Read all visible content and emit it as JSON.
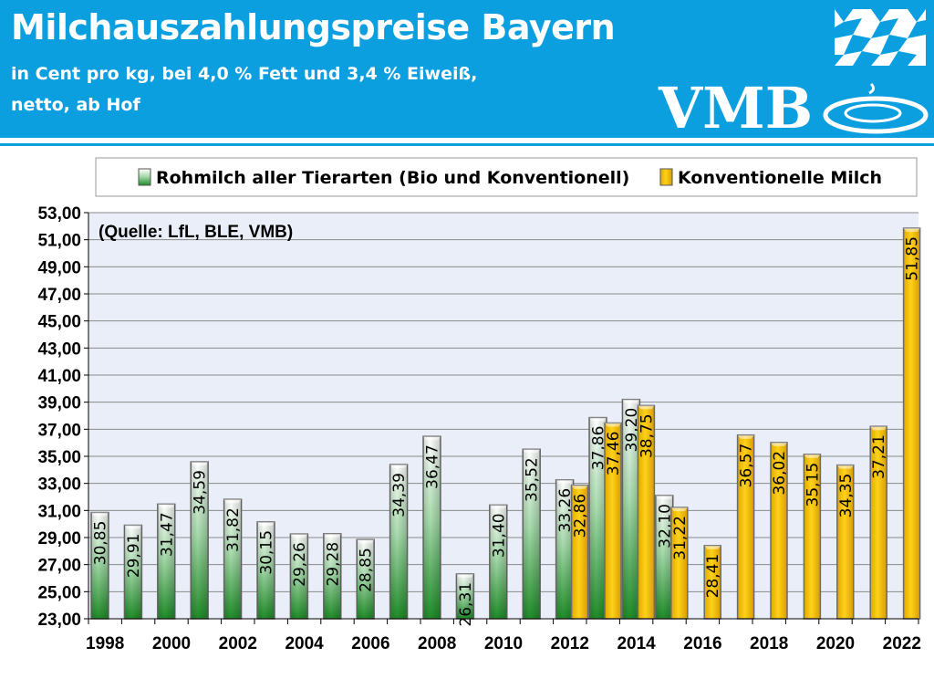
{
  "header": {
    "title": "Milchauszahlungspreise Bayern",
    "subtitle_line1": "in Cent pro kg, bei 4,0 % Fett und 3,4 % Eiweiß,",
    "subtitle_line2": "netto, ab Hof",
    "logo_text": "VMB",
    "background_color": "#0c9fe0"
  },
  "chart_data": {
    "type": "bar",
    "annotation": "(Quelle: LfL, BLE, VMB)",
    "categories": [
      1998,
      1999,
      2000,
      2001,
      2002,
      2003,
      2004,
      2005,
      2006,
      2007,
      2008,
      2009,
      2010,
      2011,
      2012,
      2013,
      2014,
      2015,
      2016,
      2017,
      2018,
      2019,
      2020,
      2021,
      2022
    ],
    "x_tick_labels": [
      "1998",
      "2000",
      "2002",
      "2004",
      "2006",
      "2008",
      "2010",
      "2012",
      "2014",
      "2016",
      "2018",
      "2020",
      "2022"
    ],
    "y_tick_labels": [
      "23,00",
      "25,00",
      "27,00",
      "29,00",
      "31,00",
      "33,00",
      "35,00",
      "37,00",
      "39,00",
      "41,00",
      "43,00",
      "45,00",
      "47,00",
      "49,00",
      "51,00",
      "53,00"
    ],
    "ylim": [
      23,
      53
    ],
    "grid": true,
    "legend_position": "top",
    "series": [
      {
        "name": "Rohmilch aller Tierarten (Bio und Konventionell)",
        "color": "#2e9a3a",
        "values": [
          30.85,
          29.91,
          31.47,
          34.59,
          31.82,
          30.15,
          29.26,
          29.28,
          28.85,
          34.39,
          36.47,
          26.31,
          31.4,
          35.52,
          33.26,
          37.86,
          39.2,
          32.1,
          null,
          null,
          null,
          null,
          null,
          null,
          null
        ],
        "labels": [
          "30,85",
          "29,91",
          "31,47",
          "34,59",
          "31,82",
          "30,15",
          "29,26",
          "29,28",
          "28,85",
          "34,39",
          "36,47",
          "26,31",
          "31,40",
          "35,52",
          "33,26",
          "37,86",
          "39,20",
          "32,10",
          null,
          null,
          null,
          null,
          null,
          null,
          null
        ]
      },
      {
        "name": "Konventionelle Milch",
        "color": "#f2c200",
        "values": [
          null,
          null,
          null,
          null,
          null,
          null,
          null,
          null,
          null,
          null,
          null,
          null,
          null,
          null,
          32.86,
          37.46,
          38.75,
          31.22,
          28.41,
          36.57,
          36.02,
          35.15,
          34.35,
          37.21,
          51.85
        ],
        "labels": [
          null,
          null,
          null,
          null,
          null,
          null,
          null,
          null,
          null,
          null,
          null,
          null,
          null,
          null,
          "32,86",
          "37,46",
          "38,75",
          "31,22",
          "28,41",
          "36,57",
          "36,02",
          "35,15",
          "34,35",
          "37,21",
          "51,85"
        ]
      }
    ]
  }
}
